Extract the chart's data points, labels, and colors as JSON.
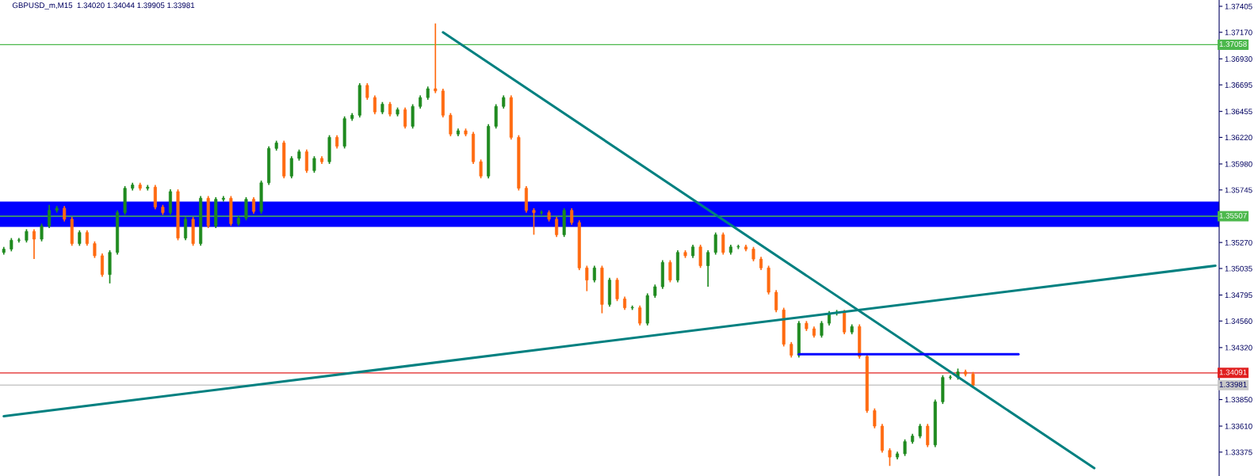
{
  "chart_data": {
    "type": "candlestick",
    "title": "GBPUSD_m,M15  1.34020 1.34044 1.39905 1.33981",
    "colors": [
      "#1f8a1f",
      "#1f8a1f",
      "#1f8a1f",
      "#1f8a1f",
      "#ff6a10",
      "#1f8a1f",
      "#1f8a1f",
      "#1f8a1f",
      "#ff6a10",
      "#ff6a10",
      "#1f8a1f",
      "#ff6a10",
      "#ff6a10",
      "#ff6a10",
      "#1f8a1f",
      "#1f8a1f",
      "#1f8a1f",
      "#1f8a1f",
      "#ff6a10",
      "#1f8a1f",
      "#ff6a10",
      "#ff6a10",
      "#1f8a1f",
      "#ff6a10",
      "#1f8a1f",
      "#ff6a10",
      "#1f8a1f",
      "#ff6a10",
      "#1f8a1f",
      "#1f8a1f",
      "#ff6a10",
      "#1f8a1f",
      "#1f8a1f",
      "#ff6a10",
      "#1f8a1f",
      "#1f8a1f",
      "#1f8a1f",
      "#ff6a10",
      "#1f8a1f",
      "#1f8a1f",
      "#ff6a10",
      "#1f8a1f",
      "#ff6a10",
      "#1f8a1f",
      "#ff6a10",
      "#1f8a1f",
      "#1f8a1f",
      "#1f8a1f",
      "#ff6a10",
      "#ff6a10",
      "#1f8a1f",
      "#ff6a10",
      "#1f8a1f",
      "#ff6a10",
      "#1f8a1f",
      "#1f8a1f",
      "#1f8a1f",
      "#ff6a10",
      "#ff6a10",
      "#ff6a10",
      "#1f8a1f",
      "#ff6a10",
      "#ff6a10",
      "#ff6a10",
      "#1f8a1f",
      "#1f8a1f",
      "#1f8a1f",
      "#ff6a10",
      "#ff6a10",
      "#ff6a10",
      "#ff6a10",
      "#1f8a1f",
      "#ff6a10",
      "#ff6a10",
      "#1f8a1f",
      "#ff6a10",
      "#ff6a10",
      "#ff6a10",
      "#1f8a1f",
      "#ff6a10",
      "#1f8a1f",
      "#ff6a10",
      "#ff6a10",
      "#1f8a1f",
      "#ff6a10",
      "#1f8a1f",
      "#1f8a1f",
      "#1f8a1f",
      "#ff6a10",
      "#1f8a1f",
      "#ff6a10",
      "#1f8a1f",
      "#ff6a10",
      "#1f8a1f",
      "#1f8a1f",
      "#ff6a10",
      "#1f8a1f",
      "#1f8a1f",
      "#ff6a10",
      "#ff6a10",
      "#ff6a10",
      "#ff6a10",
      "#ff6a10",
      "#ff6a10",
      "#ff6a10",
      "#1f8a1f",
      "#ff6a10",
      "#ff6a10",
      "#1f8a1f",
      "#1f8a1f",
      "#1f8a1f",
      "#ff6a10",
      "#1f8a1f",
      "#ff6a10",
      "#ff6a10",
      "#ff6a10",
      "#ff6a10",
      "#ff6a10",
      "#1f8a1f",
      "#1f8a1f",
      "#1f8a1f",
      "#1f8a1f",
      "#ff6a10",
      "#1f8a1f",
      "#1f8a1f",
      "#1f8a1f",
      "#1f8a1f",
      "#ff6a10",
      "#ff6a10",
      null,
      null,
      null,
      null,
      null,
      null,
      null,
      null,
      null,
      null,
      null,
      null,
      null,
      null,
      null,
      null,
      null,
      null,
      null,
      null,
      null,
      null,
      null,
      null,
      null,
      null,
      null,
      null,
      null,
      null,
      null,
      null
    ],
    "categories": [
      null,
      null,
      null,
      null,
      null,
      null,
      null,
      null,
      null,
      null,
      null,
      null,
      null,
      null,
      null,
      null,
      null,
      null,
      null,
      null,
      null,
      null,
      null,
      null,
      null,
      null,
      null,
      null,
      null,
      null,
      null,
      null,
      null,
      null,
      null,
      null,
      null,
      null,
      null,
      null,
      null,
      null,
      null,
      null,
      null,
      null,
      null,
      null,
      null,
      null,
      null,
      null,
      null,
      null,
      null,
      null,
      null,
      null,
      null,
      null,
      null,
      null,
      null,
      null,
      null,
      null,
      null,
      null,
      null,
      null,
      null,
      null,
      null,
      null,
      null,
      null,
      null,
      null,
      null,
      null,
      null,
      null,
      null,
      null,
      null,
      null,
      null,
      null,
      null,
      null,
      null,
      null,
      null,
      null,
      null,
      null,
      null,
      null,
      null,
      null,
      null,
      null,
      null,
      null,
      null,
      null,
      null,
      null,
      null,
      null,
      null,
      null,
      null,
      null,
      null,
      null,
      null,
      null,
      null,
      null,
      null,
      null,
      null,
      null,
      null,
      null,
      null,
      null,
      null,
      null,
      null,
      null,
      null,
      null,
      null,
      null,
      null,
      null,
      null,
      null,
      null,
      null,
      null,
      null,
      null,
      null,
      null,
      null,
      null,
      null,
      null,
      null,
      null,
      null,
      null,
      null,
      null,
      null,
      null,
      null,
      null
    ],
    "ohlc": [
      [
        1.3518,
        1.3523,
        1.3516,
        1.3521
      ],
      [
        1.3521,
        1.3531,
        1.3519,
        1.3529
      ],
      [
        1.3529,
        1.3531,
        1.3527,
        1.3529
      ],
      [
        1.3529,
        1.3539,
        1.3527,
        1.3537
      ],
      [
        1.3537,
        1.3539,
        1.3512,
        1.353
      ],
      [
        1.353,
        1.3544,
        1.3528,
        1.3542
      ],
      [
        1.3542,
        1.3561,
        1.354,
        1.3556
      ],
      [
        1.3556,
        1.356,
        1.3554,
        1.3558
      ],
      [
        1.3558,
        1.356,
        1.3546,
        1.3548
      ],
      [
        1.3548,
        1.355,
        1.3524,
        1.3526
      ],
      [
        1.3526,
        1.3538,
        1.3524,
        1.3536
      ],
      [
        1.3536,
        1.3538,
        1.3524,
        1.3526
      ],
      [
        1.3526,
        1.3528,
        1.3513,
        1.3515
      ],
      [
        1.3515,
        1.3517,
        1.3496,
        1.3498
      ],
      [
        1.3498,
        1.352,
        1.349,
        1.3518
      ],
      [
        1.3518,
        1.3556,
        1.3516,
        1.3554
      ],
      [
        1.3554,
        1.3578,
        1.3552,
        1.3576
      ],
      [
        1.3576,
        1.3581,
        1.3574,
        1.3579
      ],
      [
        1.3579,
        1.3581,
        1.3574,
        1.3576
      ],
      [
        1.3576,
        1.3579,
        1.3574,
        1.3577
      ],
      [
        1.3577,
        1.3579,
        1.3557,
        1.3559
      ],
      [
        1.3559,
        1.3561,
        1.3552,
        1.3554
      ],
      [
        1.3554,
        1.3575,
        1.3552,
        1.3573
      ],
      [
        1.3573,
        1.3575,
        1.3529,
        1.3531
      ],
      [
        1.3531,
        1.355,
        1.3529,
        1.3548
      ],
      [
        1.3548,
        1.355,
        1.3524,
        1.3526
      ],
      [
        1.3526,
        1.3569,
        1.3524,
        1.3567
      ],
      [
        1.3567,
        1.3569,
        1.354,
        1.3542
      ],
      [
        1.3542,
        1.3568,
        1.354,
        1.3566
      ],
      [
        1.3566,
        1.3569,
        1.3564,
        1.3567
      ],
      [
        1.3567,
        1.3569,
        1.3542,
        1.3544
      ],
      [
        1.3544,
        1.3551,
        1.3542,
        1.3549
      ],
      [
        1.3549,
        1.3568,
        1.3547,
        1.3566
      ],
      [
        1.3566,
        1.3568,
        1.3553,
        1.3555
      ],
      [
        1.3555,
        1.3583,
        1.3553,
        1.3581
      ],
      [
        1.3581,
        1.3614,
        1.3579,
        1.3612
      ],
      [
        1.3612,
        1.3619,
        1.361,
        1.3617
      ],
      [
        1.3617,
        1.3619,
        1.3585,
        1.3587
      ],
      [
        1.3587,
        1.3605,
        1.3585,
        1.3603
      ],
      [
        1.3603,
        1.3611,
        1.3601,
        1.3609
      ],
      [
        1.3609,
        1.3611,
        1.359,
        1.3592
      ],
      [
        1.3592,
        1.3605,
        1.359,
        1.3603
      ],
      [
        1.3603,
        1.3605,
        1.3598,
        1.36
      ],
      [
        1.36,
        1.3624,
        1.3598,
        1.3622
      ],
      [
        1.3622,
        1.3624,
        1.3612,
        1.3614
      ],
      [
        1.3614,
        1.3641,
        1.3612,
        1.3639
      ],
      [
        1.3639,
        1.3644,
        1.3637,
        1.3642
      ],
      [
        1.3642,
        1.3671,
        1.364,
        1.3669
      ],
      [
        1.3669,
        1.3671,
        1.3656,
        1.3658
      ],
      [
        1.3658,
        1.366,
        1.3643,
        1.3645
      ],
      [
        1.3645,
        1.3654,
        1.3643,
        1.3652
      ],
      [
        1.3652,
        1.3654,
        1.3641,
        1.3643
      ],
      [
        1.3643,
        1.3649,
        1.3641,
        1.3647
      ],
      [
        1.3647,
        1.3649,
        1.363,
        1.3632
      ],
      [
        1.3632,
        1.3652,
        1.363,
        1.365
      ],
      [
        1.365,
        1.366,
        1.3648,
        1.3658
      ],
      [
        1.3658,
        1.3668,
        1.3656,
        1.3666
      ],
      [
        1.3666,
        1.3725,
        1.3662,
        1.3664
      ],
      [
        1.3664,
        1.3666,
        1.364,
        1.3642
      ],
      [
        1.3642,
        1.3644,
        1.3623,
        1.3625
      ],
      [
        1.3625,
        1.363,
        1.3623,
        1.3628
      ],
      [
        1.3628,
        1.363,
        1.3623,
        1.3625
      ],
      [
        1.3625,
        1.3627,
        1.3598,
        1.36
      ],
      [
        1.36,
        1.3602,
        1.3585,
        1.3587
      ],
      [
        1.3587,
        1.3634,
        1.3585,
        1.3632
      ],
      [
        1.3632,
        1.3652,
        1.363,
        1.365
      ],
      [
        1.365,
        1.366,
        1.3648,
        1.3658
      ],
      [
        1.3658,
        1.366,
        1.362,
        1.3622
      ],
      [
        1.3622,
        1.3624,
        1.3574,
        1.3576
      ],
      [
        1.3576,
        1.3578,
        1.3554,
        1.3556
      ],
      [
        1.3556,
        1.3558,
        1.3534,
        1.3554
      ],
      [
        1.3554,
        1.3556,
        1.3552,
        1.3554
      ],
      [
        1.3554,
        1.3556,
        1.3546,
        1.3548
      ],
      [
        1.3548,
        1.355,
        1.3532,
        1.3534
      ],
      [
        1.3534,
        1.3558,
        1.3532,
        1.3556
      ],
      [
        1.3556,
        1.3558,
        1.3543,
        1.3545
      ],
      [
        1.3545,
        1.3547,
        1.3502,
        1.3504
      ],
      [
        1.3504,
        1.3506,
        1.3483,
        1.3493
      ],
      [
        1.3493,
        1.3506,
        1.3491,
        1.3504
      ],
      [
        1.3504,
        1.3506,
        1.3463,
        1.3471
      ],
      [
        1.3471,
        1.3495,
        1.3469,
        1.3493
      ],
      [
        1.3493,
        1.3495,
        1.3474,
        1.3476
      ],
      [
        1.3476,
        1.3478,
        1.3466,
        1.3468
      ],
      [
        1.3468,
        1.347,
        1.3466,
        1.3468
      ],
      [
        1.3468,
        1.347,
        1.3452,
        1.3454
      ],
      [
        1.3454,
        1.3481,
        1.3452,
        1.3479
      ],
      [
        1.3479,
        1.3489,
        1.3477,
        1.3487
      ],
      [
        1.3487,
        1.3511,
        1.3485,
        1.3509
      ],
      [
        1.3509,
        1.3511,
        1.3491,
        1.3493
      ],
      [
        1.3493,
        1.352,
        1.3491,
        1.3518
      ],
      [
        1.3518,
        1.352,
        1.3513,
        1.3515
      ],
      [
        1.3515,
        1.3525,
        1.3513,
        1.3523
      ],
      [
        1.3523,
        1.3525,
        1.3504,
        1.3506
      ],
      [
        1.3506,
        1.352,
        1.3487,
        1.3518
      ],
      [
        1.3518,
        1.3536,
        1.3516,
        1.3534
      ],
      [
        1.3534,
        1.3536,
        1.3516,
        1.3518
      ],
      [
        1.3518,
        1.3525,
        1.3516,
        1.3523
      ],
      [
        1.3523,
        1.3525,
        1.3521,
        1.3523
      ],
      [
        1.3523,
        1.3525,
        1.3519,
        1.3521
      ],
      [
        1.3521,
        1.3523,
        1.351,
        1.3512
      ],
      [
        1.3512,
        1.3514,
        1.3502,
        1.3504
      ],
      [
        1.3504,
        1.3506,
        1.348,
        1.3482
      ],
      [
        1.3482,
        1.3484,
        1.3464,
        1.3466
      ],
      [
        1.3466,
        1.3468,
        1.3433,
        1.3435
      ],
      [
        1.3435,
        1.3437,
        1.3423,
        1.3425
      ],
      [
        1.3425,
        1.3456,
        1.3423,
        1.3454
      ],
      [
        1.3454,
        1.3456,
        1.3447,
        1.3449
      ],
      [
        1.3449,
        1.3451,
        1.3441,
        1.3443
      ],
      [
        1.3443,
        1.3456,
        1.3441,
        1.3454
      ],
      [
        1.3454,
        1.3465,
        1.3452,
        1.3463
      ],
      [
        1.3463,
        1.3466,
        1.3461,
        1.3464
      ],
      [
        1.3464,
        1.3466,
        1.3444,
        1.3446
      ],
      [
        1.3446,
        1.3453,
        1.3444,
        1.3451
      ],
      [
        1.3451,
        1.3453,
        1.3422,
        1.3424
      ],
      [
        1.3424,
        1.3426,
        1.3373,
        1.3375
      ],
      [
        1.3375,
        1.3377,
        1.3359,
        1.3361
      ],
      [
        1.3361,
        1.3363,
        1.3337,
        1.3339
      ],
      [
        1.3339,
        1.3341,
        1.3325,
        1.3333
      ],
      [
        1.3333,
        1.3338,
        1.3331,
        1.3336
      ],
      [
        1.3336,
        1.3349,
        1.3334,
        1.3347
      ],
      [
        1.3347,
        1.3354,
        1.3345,
        1.3352
      ],
      [
        1.3352,
        1.3363,
        1.335,
        1.3361
      ],
      [
        1.3361,
        1.3363,
        1.3342,
        1.3344
      ],
      [
        1.3344,
        1.3385,
        1.3342,
        1.3383
      ],
      [
        1.3383,
        1.3407,
        1.3381,
        1.3405
      ],
      [
        1.3405,
        1.3407,
        1.3403,
        1.3405
      ],
      [
        1.3405,
        1.3413,
        1.3403,
        1.341
      ],
      [
        1.341,
        1.3412,
        1.3406,
        1.3408
      ],
      [
        1.3408,
        1.341,
        1.3396,
        1.3398
      ],
      null,
      null,
      null,
      null,
      null,
      null,
      null,
      null,
      null,
      null,
      null,
      null,
      null,
      null,
      null,
      null,
      null,
      null,
      null,
      null,
      null,
      null,
      null,
      null,
      null,
      null,
      null,
      null,
      null,
      null,
      null,
      null
    ],
    "series": [
      {
        "type": "line",
        "color": "#008080",
        "values": [
          null,
          null,
          null,
          null,
          null,
          null,
          null,
          null,
          null,
          null,
          null,
          null,
          null,
          null,
          null,
          null,
          null,
          null,
          null,
          null,
          null,
          null,
          null,
          null,
          null,
          null,
          null,
          null,
          null,
          null,
          null,
          null,
          null,
          null,
          null,
          null,
          null,
          null,
          null,
          null,
          null,
          null,
          null,
          null,
          null,
          null,
          null,
          null,
          null,
          null,
          null,
          null,
          null,
          null,
          null,
          null,
          null,
          null,
          1.3717,
          null,
          null,
          null,
          null,
          null,
          null,
          null,
          null,
          null,
          null,
          null,
          null,
          null,
          null,
          null,
          null,
          null,
          null,
          null,
          null,
          null,
          null,
          null,
          null,
          null,
          null,
          null,
          null,
          null,
          null,
          null,
          null,
          null,
          null,
          null,
          null,
          null,
          null,
          null,
          null,
          null,
          null,
          null,
          null,
          null,
          null,
          null,
          null,
          null,
          null,
          null,
          null,
          null,
          null,
          null,
          null,
          null,
          null,
          null,
          null,
          null,
          null,
          null,
          null,
          null,
          null,
          null,
          null,
          null,
          null,
          null,
          null,
          null,
          null,
          null,
          null,
          null,
          null,
          null,
          null,
          null,
          null,
          null,
          null,
          null,
          1.3323,
          null,
          null,
          null,
          null,
          null,
          null,
          null,
          null,
          null,
          null,
          null,
          null,
          null,
          null,
          null,
          null
        ]
      },
      {
        "type": "line",
        "color": "#008080",
        "values": [
          1.337,
          null,
          null,
          null,
          null,
          null,
          null,
          null,
          null,
          null,
          null,
          null,
          null,
          null,
          null,
          null,
          null,
          null,
          null,
          null,
          null,
          null,
          null,
          null,
          null,
          null,
          null,
          null,
          null,
          null,
          null,
          null,
          null,
          null,
          null,
          null,
          null,
          null,
          null,
          null,
          null,
          null,
          null,
          null,
          null,
          null,
          null,
          null,
          null,
          null,
          null,
          null,
          null,
          null,
          null,
          null,
          null,
          null,
          null,
          null,
          null,
          null,
          null,
          null,
          null,
          null,
          null,
          null,
          null,
          null,
          null,
          null,
          null,
          null,
          null,
          null,
          null,
          null,
          null,
          null,
          null,
          null,
          null,
          null,
          null,
          null,
          null,
          null,
          null,
          null,
          null,
          null,
          null,
          null,
          null,
          null,
          null,
          null,
          null,
          null,
          null,
          null,
          null,
          null,
          null,
          null,
          null,
          null,
          null,
          null,
          null,
          null,
          null,
          null,
          null,
          null,
          null,
          null,
          null,
          null,
          null,
          null,
          null,
          null,
          null,
          null,
          null,
          null,
          null,
          null,
          null,
          null,
          null,
          null,
          null,
          null,
          null,
          null,
          null,
          null,
          null,
          null,
          null,
          null,
          null,
          null,
          null,
          null,
          null,
          null,
          null,
          null,
          null,
          null,
          null,
          null,
          null,
          null,
          null,
          null,
          1.3506
        ]
      },
      {
        "type": "line",
        "color": "#0000ff",
        "values": [
          null,
          null,
          null,
          null,
          null,
          null,
          null,
          null,
          null,
          null,
          null,
          null,
          null,
          null,
          null,
          null,
          null,
          null,
          null,
          null,
          null,
          null,
          null,
          null,
          null,
          null,
          null,
          null,
          null,
          null,
          null,
          null,
          null,
          null,
          null,
          null,
          null,
          null,
          null,
          null,
          null,
          null,
          null,
          null,
          null,
          null,
          null,
          null,
          null,
          null,
          null,
          null,
          null,
          null,
          null,
          null,
          null,
          null,
          null,
          null,
          null,
          null,
          null,
          null,
          null,
          null,
          null,
          null,
          null,
          null,
          null,
          null,
          null,
          null,
          null,
          null,
          null,
          null,
          null,
          null,
          null,
          null,
          null,
          null,
          null,
          null,
          null,
          null,
          null,
          null,
          null,
          null,
          null,
          null,
          null,
          null,
          null,
          null,
          null,
          null,
          null,
          null,
          null,
          null,
          null,
          1.3426,
          null,
          null,
          null,
          null,
          null,
          null,
          null,
          null,
          null,
          null,
          null,
          null,
          null,
          null,
          null,
          null,
          null,
          null,
          null,
          null,
          null,
          null,
          null,
          null,
          null,
          null,
          null,
          null,
          1.3426,
          null,
          null,
          null,
          null,
          null,
          null,
          null,
          null,
          null,
          null,
          null,
          null,
          null,
          null,
          null,
          null,
          null,
          null,
          null,
          null,
          null,
          null,
          null,
          null,
          null,
          null
        ]
      }
    ],
    "bands": [
      {
        "axis": "y",
        "from": 1.3541,
        "to": 1.3564,
        "color": "#0000ff"
      }
    ],
    "ref_lines": [
      {
        "axis": "y",
        "value": 1.37058,
        "label": "1.37058",
        "color": "#4cb84c"
      },
      {
        "axis": "y",
        "value": 1.35507,
        "label": "1.35507",
        "color": "#4cb84c"
      },
      {
        "axis": "y",
        "value": 1.34091,
        "label": "1.34091",
        "color": "#e02020"
      },
      {
        "axis": "y",
        "value": 1.33981,
        "label": "1.33981",
        "color": "#c8c8c8"
      }
    ],
    "ylim": [
      1.33159,
      1.37462
    ],
    "yticks": [
      {
        "value": 1.37405,
        "label": "1.37405"
      },
      {
        "value": 1.3717,
        "label": "1.37170"
      },
      {
        "value": 1.3693,
        "label": "1.36930"
      },
      {
        "value": 1.36695,
        "label": "1.36695"
      },
      {
        "value": 1.36455,
        "label": "1.36455"
      },
      {
        "value": 1.3622,
        "label": "1.36220"
      },
      {
        "value": 1.3598,
        "label": "1.35980"
      },
      {
        "value": 1.35745,
        "label": "1.35745"
      },
      {
        "value": 1.3527,
        "label": "1.35270"
      },
      {
        "value": 1.35035,
        "label": "1.35035"
      },
      {
        "value": 1.34795,
        "label": "1.34795"
      },
      {
        "value": 1.3456,
        "label": "1.34560"
      },
      {
        "value": 1.3432,
        "label": "1.34320"
      },
      {
        "value": 1.3385,
        "label": "1.33850"
      },
      {
        "value": 1.3361,
        "label": "1.33610"
      },
      {
        "value": 1.33375,
        "label": "1.33375"
      }
    ],
    "tick_labels": "y"
  }
}
